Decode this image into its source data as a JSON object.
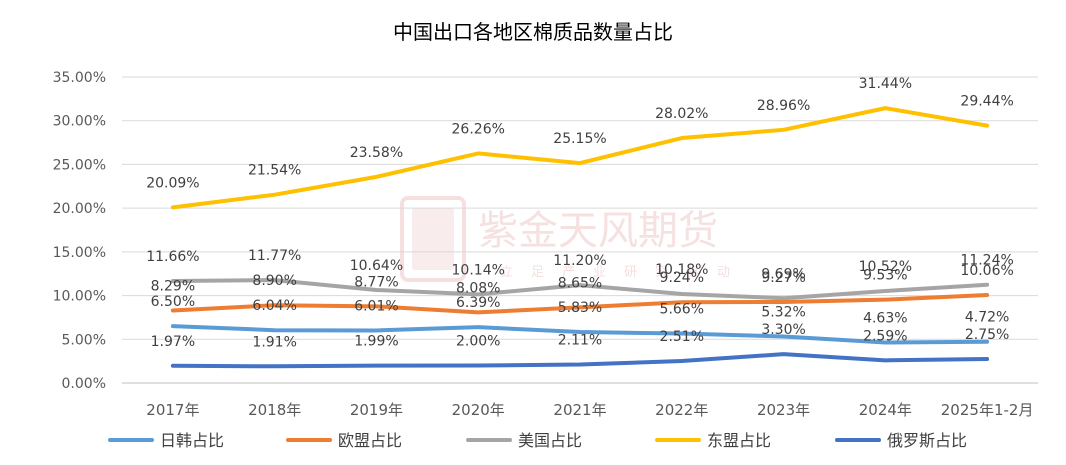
{
  "watermark": {
    "text": "紫金天风期货",
    "subtext": "立足产业研究驱动"
  },
  "chart_data": {
    "type": "line",
    "title": "中国出口各地区棉质品数量占比",
    "categories": [
      "2017年",
      "2018年",
      "2019年",
      "2020年",
      "2021年",
      "2022年",
      "2023年",
      "2024年",
      "2025年1-2月"
    ],
    "ylim": [
      0,
      35
    ],
    "ytick_values": [
      0,
      5,
      10,
      15,
      20,
      25,
      30,
      35
    ],
    "ytick_labels": [
      "0.00%",
      "5.00%",
      "10.00%",
      "15.00%",
      "20.00%",
      "25.00%",
      "30.00%",
      "35.00%"
    ],
    "grid": true,
    "legend_position": "bottom",
    "series": [
      {
        "name": "日韩占比",
        "color": "#5b9bd5",
        "values": [
          6.5,
          6.04,
          6.01,
          6.39,
          5.83,
          5.66,
          5.32,
          4.63,
          4.72
        ],
        "labels": [
          "6.50%",
          "6.04%",
          "6.01%",
          "6.39%",
          "5.83%",
          "5.66%",
          "5.32%",
          "4.63%",
          "4.72%"
        ]
      },
      {
        "name": "欧盟占比",
        "color": "#ed7d31",
        "values": [
          8.29,
          8.9,
          8.77,
          8.08,
          8.65,
          9.24,
          9.27,
          9.53,
          10.06
        ],
        "labels": [
          "8.29%",
          "8.90%",
          "8.77%",
          "8.08%",
          "8.65%",
          "9.24%",
          "9.27%",
          "9.53%",
          "10.06%"
        ]
      },
      {
        "name": "美国占比",
        "color": "#a5a5a5",
        "values": [
          11.66,
          11.77,
          10.64,
          10.14,
          11.2,
          10.18,
          9.69,
          10.52,
          11.24
        ],
        "labels": [
          "11.66%",
          "11.77%",
          "10.64%",
          "10.14%",
          "11.20%",
          "10.18%",
          "9.69%",
          "10.52%",
          "11.24%"
        ]
      },
      {
        "name": "东盟占比",
        "color": "#ffc000",
        "values": [
          20.09,
          21.54,
          23.58,
          26.26,
          25.15,
          28.02,
          28.96,
          31.44,
          29.44
        ],
        "labels": [
          "20.09%",
          "21.54%",
          "23.58%",
          "26.26%",
          "25.15%",
          "28.02%",
          "28.96%",
          "31.44%",
          "29.44%"
        ]
      },
      {
        "name": "俄罗斯占比",
        "color": "#4472c4",
        "values": [
          1.97,
          1.91,
          1.99,
          2.0,
          2.11,
          2.51,
          3.3,
          2.59,
          2.75
        ],
        "labels": [
          "1.97%",
          "1.91%",
          "1.99%",
          "2.00%",
          "2.11%",
          "2.51%",
          "3.30%",
          "2.59%",
          "2.75%"
        ]
      }
    ]
  }
}
